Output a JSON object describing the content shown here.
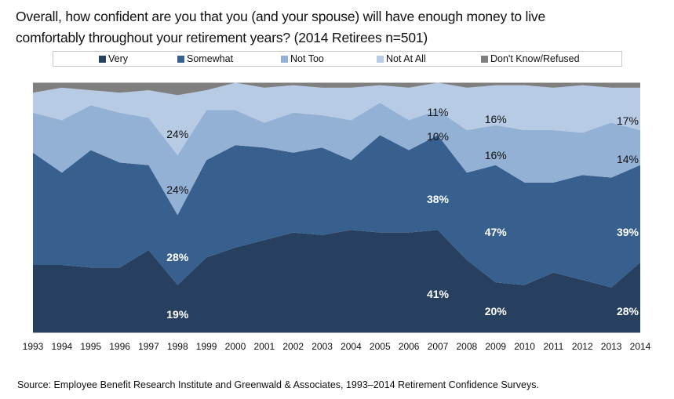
{
  "title_lines": [
    "Overall, how confident are you that you (and your spouse) will have enough money to live",
    "comfortably throughout your retirement years? (2014 Retirees n=501)"
  ],
  "source": "Source:  Employee Benefit Research Institute and Greenwald & Associates, 1993–2014 Retirement Confidence Surveys.",
  "chart_data": {
    "type": "area",
    "stacked": true,
    "percent_stacked": true,
    "title": "Overall, how confident are you that you (and your spouse) will have enough money to live comfortably throughout your retirement years? (2014 Retirees n=501)",
    "xlabel": "",
    "ylabel": "",
    "ylim": [
      0,
      100
    ],
    "grid": false,
    "legend_position": "top",
    "categories": [
      "1993",
      "1994",
      "1995",
      "1996",
      "1997",
      "1998",
      "1999",
      "2000",
      "2001",
      "2002",
      "2003",
      "2004",
      "2005",
      "2006",
      "2007",
      "2008",
      "2009",
      "2010",
      "2011",
      "2012",
      "2013",
      "2014"
    ],
    "series": [
      {
        "name": "Very",
        "color": "#27405f",
        "values": [
          27,
          27,
          26,
          26,
          33,
          19,
          30,
          34,
          37,
          40,
          39,
          41,
          40,
          40,
          41,
          29,
          20,
          19,
          24,
          21,
          18,
          28
        ]
      },
      {
        "name": "Somewhat",
        "color": "#37608e",
        "values": [
          45,
          37,
          47,
          42,
          34,
          28,
          39,
          41,
          37,
          32,
          35,
          28,
          39,
          33,
          38,
          35,
          47,
          41,
          36,
          42,
          44,
          39
        ]
      },
      {
        "name": "Not Too",
        "color": "#93b1d5",
        "values": [
          16,
          21,
          18,
          20,
          19,
          24,
          20,
          14,
          10,
          16,
          13,
          16,
          13,
          12,
          10,
          17,
          16,
          21,
          21,
          17,
          22,
          14
        ]
      },
      {
        "name": "Not At All",
        "color": "#b8cbe4",
        "values": [
          8,
          13,
          6,
          8,
          11,
          24,
          8,
          11,
          14,
          11,
          11,
          13,
          7,
          13,
          11,
          17,
          16,
          18,
          17,
          19,
          14,
          17
        ]
      },
      {
        "name": "Don't Know/Refused",
        "color": "#7f7f7f",
        "values": [
          4,
          2,
          3,
          4,
          3,
          5,
          3,
          0,
          2,
          1,
          2,
          2,
          1,
          2,
          0,
          2,
          1,
          1,
          2,
          1,
          2,
          2
        ]
      }
    ],
    "annotations": [
      {
        "series": "Very",
        "category": "1998",
        "text": "19%"
      },
      {
        "series": "Somewhat",
        "category": "1998",
        "text": "28%"
      },
      {
        "series": "Not Too",
        "category": "1998",
        "text": "24%"
      },
      {
        "series": "Not At All",
        "category": "1998",
        "text": "24%"
      },
      {
        "series": "Very",
        "category": "2007",
        "text": "41%"
      },
      {
        "series": "Somewhat",
        "category": "2007",
        "text": "38%"
      },
      {
        "series": "Not Too",
        "category": "2007",
        "text": "10%"
      },
      {
        "series": "Not At All",
        "category": "2007",
        "text": "11%"
      },
      {
        "series": "Very",
        "category": "2009",
        "text": "20%"
      },
      {
        "series": "Somewhat",
        "category": "2009",
        "text": "47%"
      },
      {
        "series": "Not Too",
        "category": "2009",
        "text": "16%"
      },
      {
        "series": "Not At All",
        "category": "2009",
        "text": "16%"
      },
      {
        "series": "Very",
        "category": "2014",
        "text": "28%"
      },
      {
        "series": "Somewhat",
        "category": "2014",
        "text": "39%"
      },
      {
        "series": "Not Too",
        "category": "2014",
        "text": "14%"
      },
      {
        "series": "Not At All",
        "category": "2014",
        "text": "17%"
      }
    ]
  }
}
